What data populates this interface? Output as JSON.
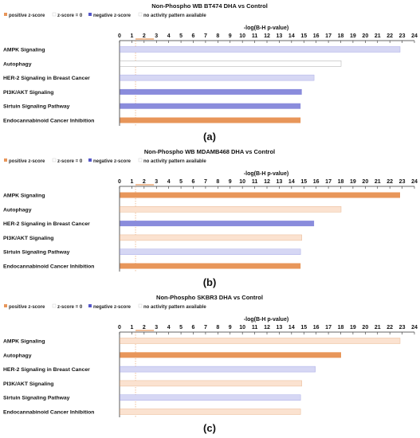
{
  "colors": {
    "positive": "#e8965a",
    "positive_light": "#fbe2d0",
    "negative": "#8a8cdc",
    "negative_light": "#d6d7f4",
    "none": "#ffffff",
    "threshold": "#e8965a",
    "grid": "#d0d0d0",
    "bar_border_none": "#b8b8b8"
  },
  "legend": {
    "positive": "positive z-score",
    "zero": "z-score = 0",
    "negative": "negative z-score",
    "none": "no activity pattern available"
  },
  "axis": {
    "title": "-log(B-H p-value)",
    "ticks": [
      "0",
      "1",
      "2",
      "3",
      "4",
      "5",
      "6",
      "7",
      "8",
      "9",
      "10",
      "11",
      "12",
      "13",
      "14",
      "15",
      "16",
      "17",
      "18",
      "19",
      "20",
      "21",
      "22",
      "23",
      "24"
    ],
    "xlim": [
      0,
      24
    ],
    "threshold_marker": [
      1.3,
      2
    ]
  },
  "chart_data": [
    {
      "type": "bar",
      "title": "Non-Phospho WB BT474 DHA vs Control",
      "caption": "(a)",
      "xlabel": "-log(B-H p-value)",
      "xlim": [
        0,
        24
      ],
      "categories": [
        "AMPK Signaling",
        "Autophagy",
        "HER-2 Signaling in Breast Cancer",
        "PI3K/AKT Signaling",
        "Sirtuin Signaling Pathway",
        "Endocannabinoid Cancer Inhibition"
      ],
      "values": [
        22.8,
        18.0,
        15.8,
        14.8,
        14.7,
        14.7
      ],
      "fill": [
        "negative_light",
        "none",
        "negative_light",
        "negative",
        "negative",
        "positive"
      ]
    },
    {
      "type": "bar",
      "title": "Non-Phospho WB MDAMB468 DHA vs Control",
      "caption": "(b)",
      "xlabel": "-log(B-H p-value)",
      "xlim": [
        0,
        24
      ],
      "categories": [
        "AMPK Signaling",
        "Autophagy",
        "HER-2 Signaling in Breast Cancer",
        "PI3K/AKT Signaling",
        "Sirtuin Signaling Pathway",
        "Endocannabinoid Cancer Inhibition"
      ],
      "values": [
        22.8,
        18.0,
        15.8,
        14.8,
        14.7,
        14.7
      ],
      "fill": [
        "positive",
        "positive_light",
        "negative",
        "positive_light",
        "negative_light",
        "positive"
      ]
    },
    {
      "type": "bar",
      "title": "Non-Phospho SKBR3 DHA vs Control",
      "caption": "(c)",
      "xlabel": "-log(B-H p-value)",
      "xlim": [
        0,
        24
      ],
      "categories": [
        "AMPK Signaling",
        "Autophagy",
        "HER-2 Signaling in Breast Cancer",
        "PI3K/AKT Signaling",
        "Sirtuin Signaling Pathway",
        "Endocannabinoid Cancer Inhibition"
      ],
      "values": [
        22.8,
        18.0,
        15.9,
        14.8,
        14.7,
        14.7
      ],
      "fill": [
        "positive_light",
        "positive",
        "negative_light",
        "positive_light",
        "negative_light",
        "positive_light"
      ]
    }
  ]
}
